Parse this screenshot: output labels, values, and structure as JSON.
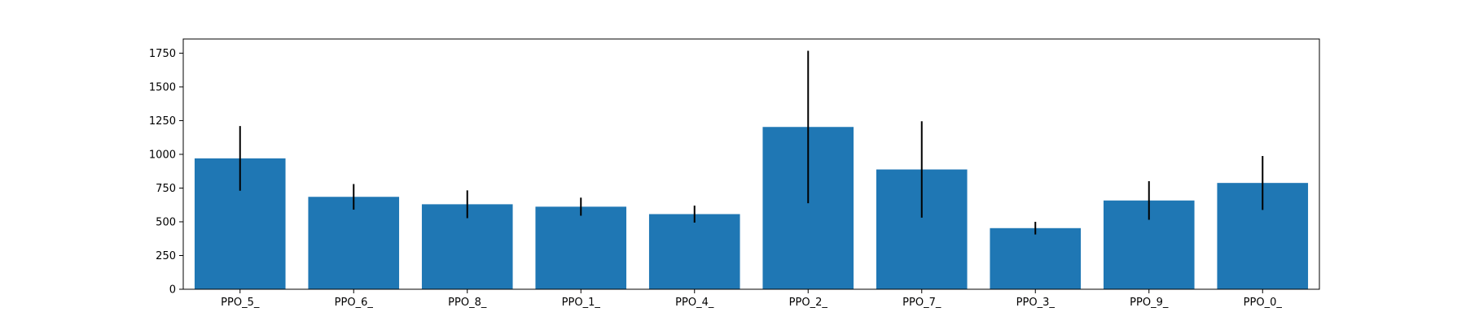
{
  "chart_data": {
    "type": "bar",
    "title": "",
    "xlabel": "",
    "ylabel": "",
    "categories": [
      "PPO_5_",
      "PPO_6_",
      "PPO_8_",
      "PPO_1_",
      "PPO_4_",
      "PPO_2_",
      "PPO_7_",
      "PPO_3_",
      "PPO_9_",
      "PPO_0_"
    ],
    "values": [
      970,
      685,
      630,
      612,
      557,
      1203,
      888,
      453,
      658,
      788
    ],
    "errors": [
      240,
      95,
      103,
      67,
      63,
      565,
      357,
      47,
      143,
      200
    ],
    "ylim": [
      0,
      1855
    ],
    "yticks": [
      0,
      250,
      500,
      750,
      1000,
      1250,
      1500,
      1750
    ],
    "grid": false,
    "legend": "none",
    "bar_color": "#1f77b4",
    "error_color": "#000000"
  }
}
